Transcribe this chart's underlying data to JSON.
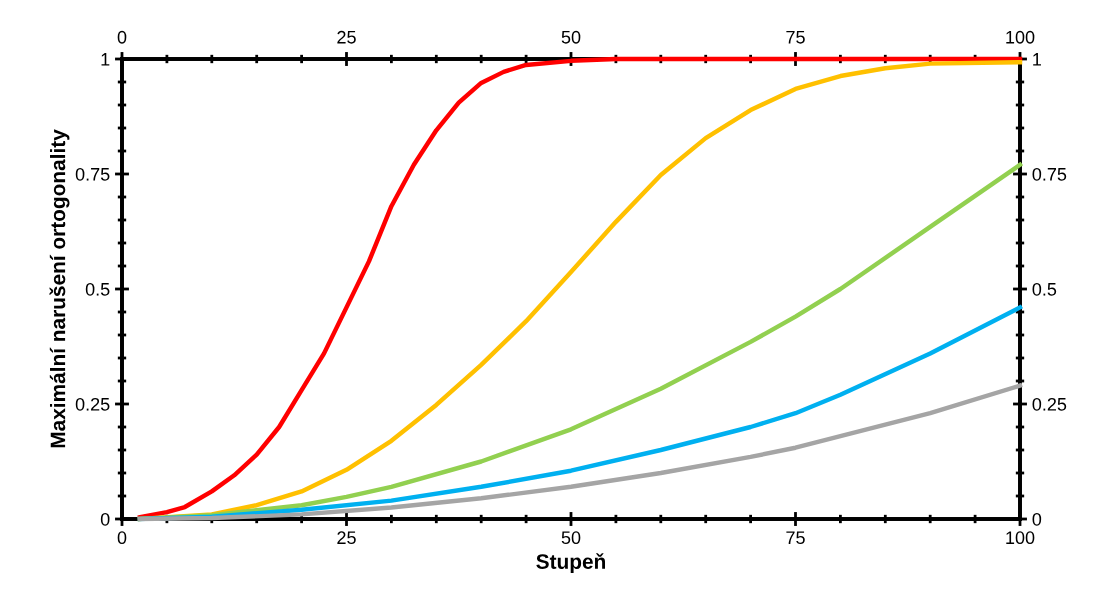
{
  "chart_data": {
    "type": "line",
    "xlabel": "Stupeň",
    "ylabel": "Maximální narušení ortogonality",
    "xlim": [
      0,
      100
    ],
    "xticks": [
      0,
      25,
      50,
      75,
      100
    ],
    "x2lim": [
      0,
      100
    ],
    "x2ticks": [
      0,
      25,
      50,
      75,
      100
    ],
    "ylim": [
      0,
      1
    ],
    "yticks": [
      0,
      0.25,
      0.5,
      0.75,
      1
    ],
    "y2lim": [
      0,
      1
    ],
    "y2ticks": [
      0,
      0.25,
      0.5,
      0.75,
      1
    ],
    "grid": false,
    "legend": false,
    "marker": "none",
    "line_style": "solid",
    "series": [
      {
        "color": "#ff0000",
        "x": [
          2,
          5,
          7,
          10,
          12.5,
          15,
          17.5,
          20,
          22.5,
          25,
          27.5,
          30,
          32.5,
          35,
          37.5,
          40,
          42.5,
          45,
          50,
          55,
          100
        ],
        "values": [
          0.004,
          0.015,
          0.026,
          0.06,
          0.095,
          0.14,
          0.2,
          0.28,
          0.36,
          0.46,
          0.56,
          0.68,
          0.77,
          0.845,
          0.905,
          0.948,
          0.972,
          0.987,
          0.996,
          1.0,
          1.0
        ]
      },
      {
        "color": "#ffc000",
        "x": [
          2,
          10,
          15,
          20,
          25,
          30,
          35,
          40,
          45,
          50,
          55,
          60,
          65,
          70,
          75,
          80,
          85,
          90,
          100
        ],
        "values": [
          0,
          0.01,
          0.03,
          0.06,
          0.107,
          0.17,
          0.248,
          0.335,
          0.43,
          0.537,
          0.646,
          0.748,
          0.828,
          0.889,
          0.935,
          0.963,
          0.98,
          0.99,
          0.993
        ]
      },
      {
        "color": "#92d050",
        "x": [
          2,
          10,
          20,
          25,
          30,
          40,
          50,
          60,
          70,
          75,
          80,
          90,
          100
        ],
        "values": [
          0,
          0.008,
          0.03,
          0.048,
          0.07,
          0.125,
          0.195,
          0.283,
          0.385,
          0.44,
          0.5,
          0.635,
          0.77
        ]
      },
      {
        "color": "#00b0f0",
        "x": [
          2,
          10,
          20,
          30,
          40,
          50,
          60,
          70,
          75,
          80,
          90,
          100
        ],
        "values": [
          0,
          0.005,
          0.02,
          0.04,
          0.07,
          0.105,
          0.15,
          0.2,
          0.23,
          0.27,
          0.36,
          0.46
        ]
      },
      {
        "color": "#a5a5a5",
        "x": [
          2,
          10,
          20,
          30,
          40,
          50,
          60,
          70,
          75,
          80,
          90,
          100
        ],
        "values": [
          0,
          0.002,
          0.01,
          0.025,
          0.045,
          0.07,
          0.1,
          0.135,
          0.155,
          0.18,
          0.23,
          0.29
        ]
      }
    ]
  }
}
